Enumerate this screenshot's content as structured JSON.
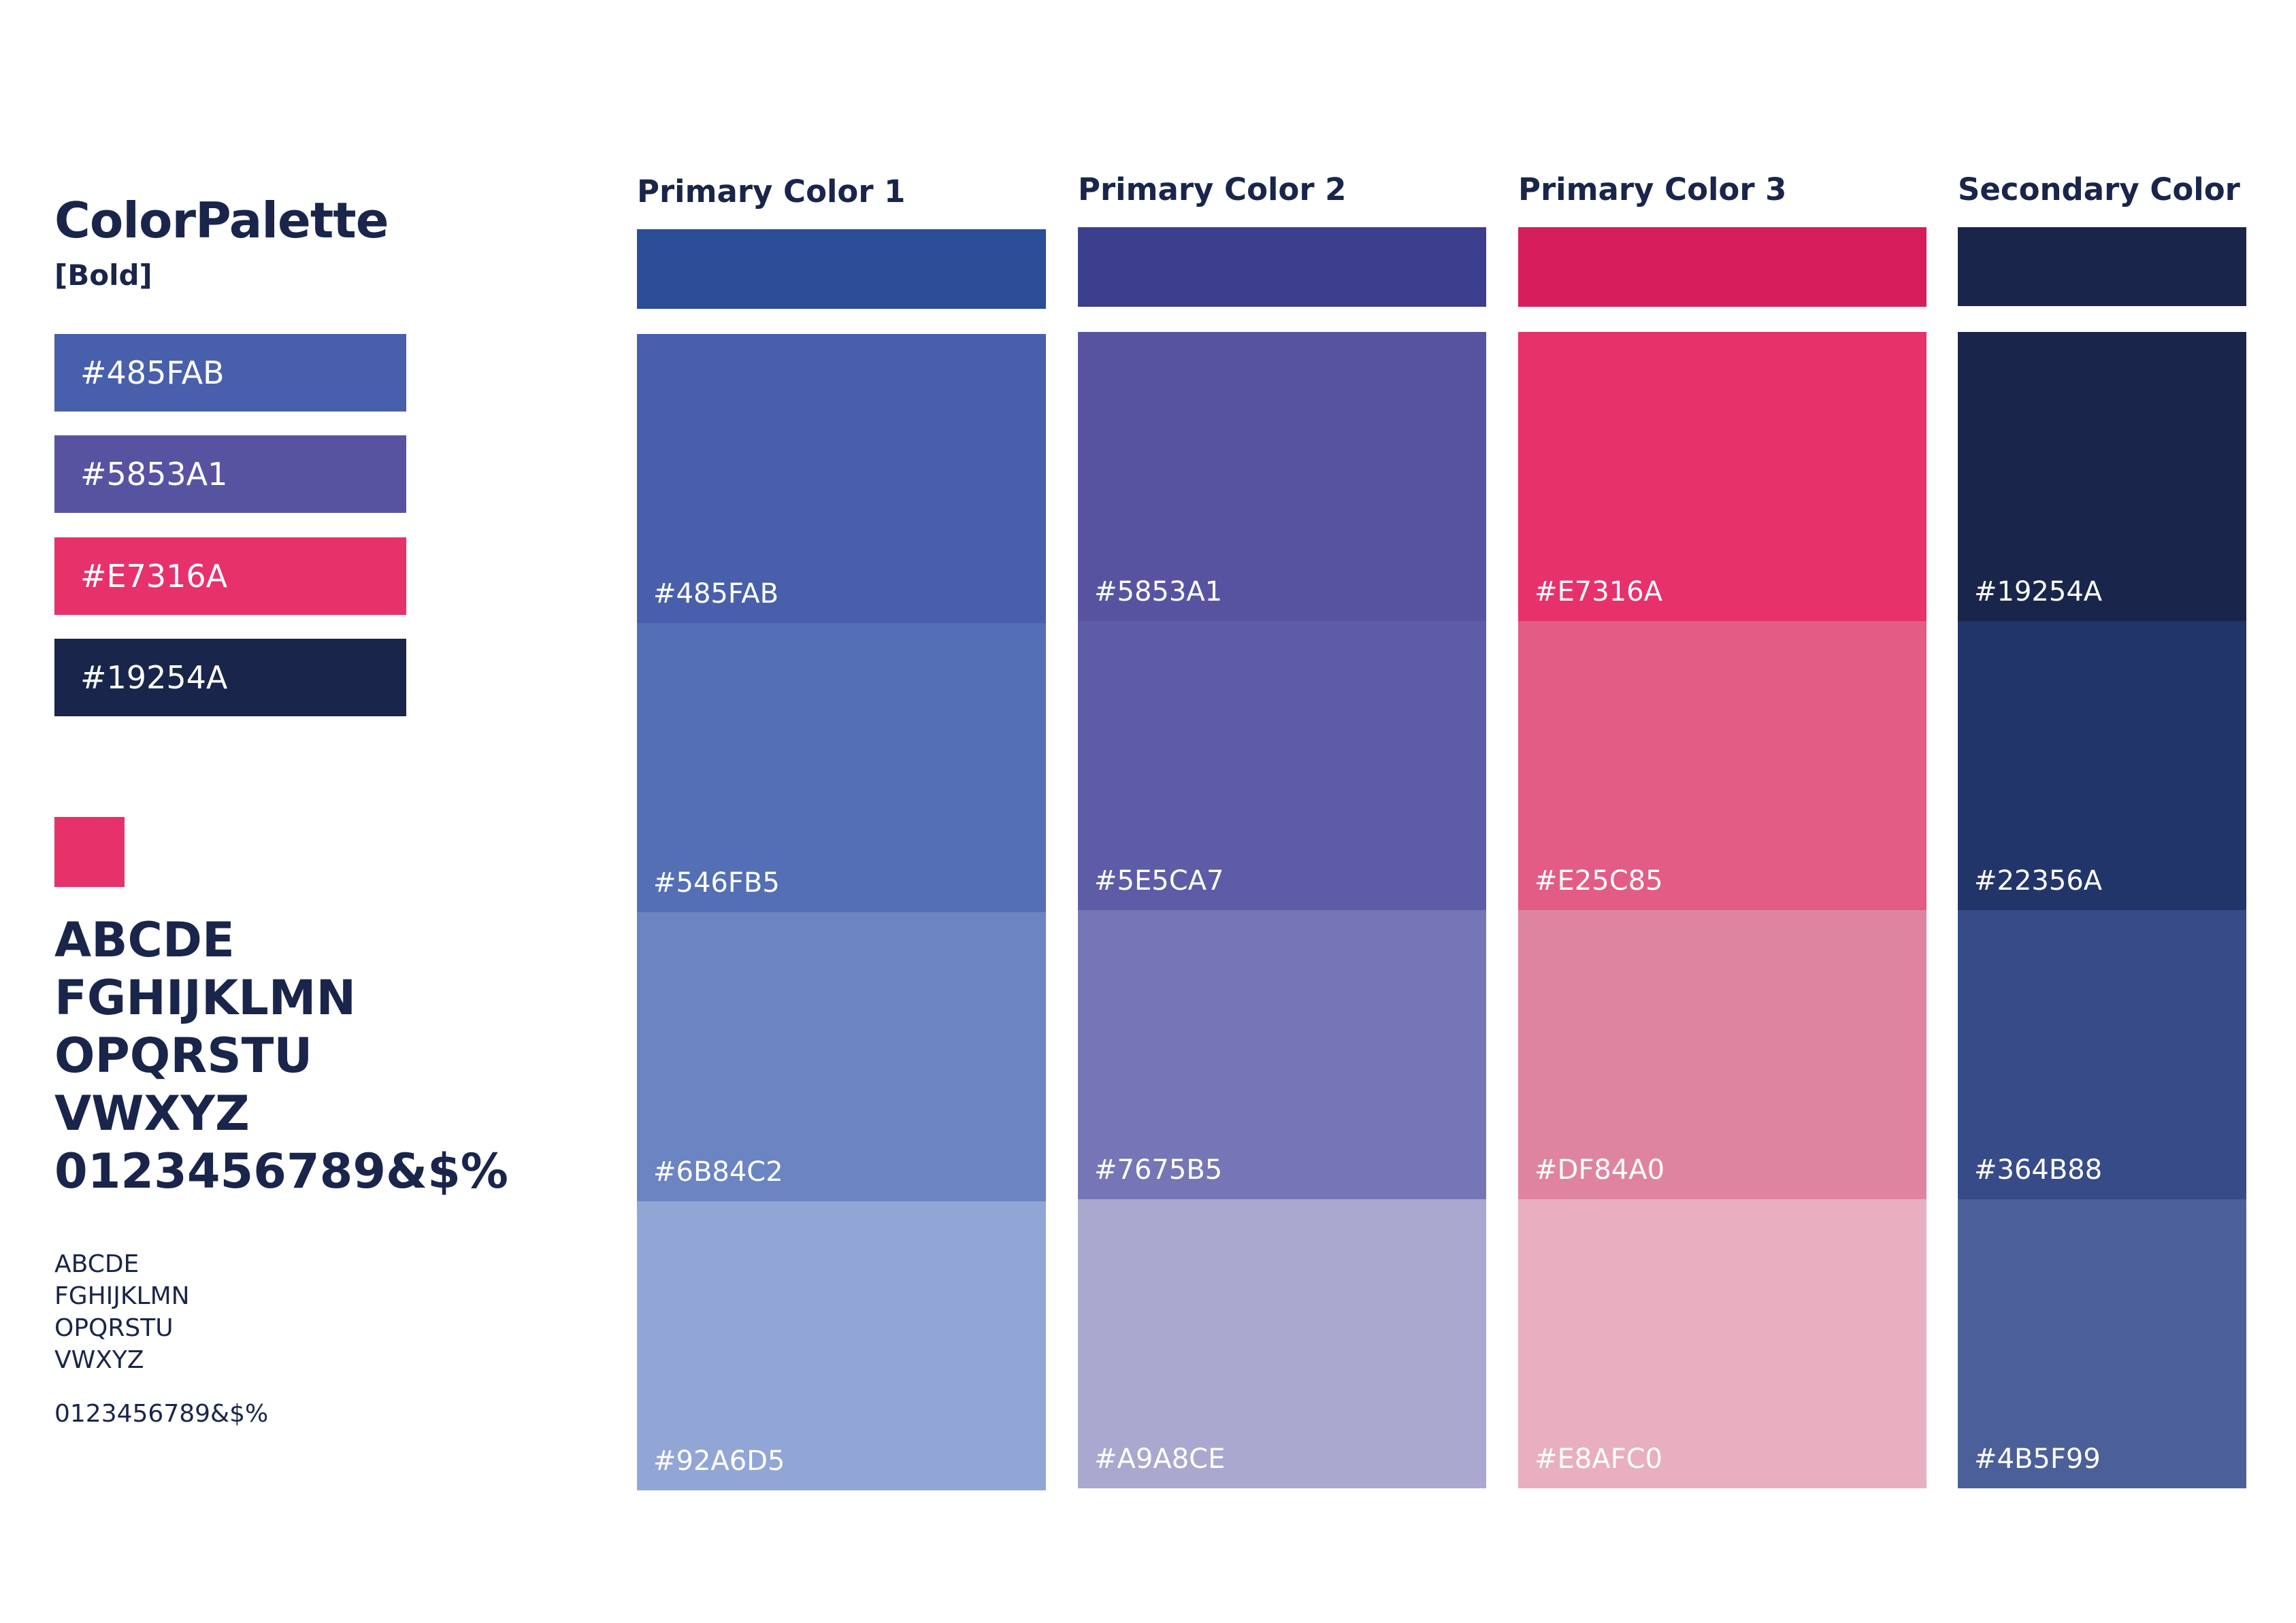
{
  "left": {
    "title": "ColorPalette",
    "subtitle": "[Bold]",
    "chips": [
      {
        "label": "#485FAB",
        "color": "#485FAB"
      },
      {
        "label": "#5853A1",
        "color": "#5853A1"
      },
      {
        "label": "#E7316A",
        "color": "#E7316A"
      },
      {
        "label": "#19254A",
        "color": "#19254A"
      }
    ],
    "accent_color": "#E7316A",
    "big_alphabet": [
      "ABCDE",
      "FGHIJKLMN",
      "OPQRSTU",
      "VWXYZ",
      "0123456789&$%"
    ],
    "small_alphabet": [
      "ABCDE",
      "FGHIJKLMN",
      "OPQRSTU",
      "VWXYZ"
    ],
    "small_digits": "0123456789&$%"
  },
  "columns": [
    {
      "heading": "Primary Color 1",
      "header_color": "#2C4E96",
      "swatches": [
        {
          "label": "#485FAB",
          "color": "#485FAB"
        },
        {
          "label": "#546FB5",
          "color": "#546FB5"
        },
        {
          "label": "#6B84C2",
          "color": "#6B84C2"
        },
        {
          "label": "#92A6D5",
          "color": "#92A6D5"
        }
      ]
    },
    {
      "heading": "Primary Color 2",
      "header_color": "#3C3F8E",
      "swatches": [
        {
          "label": "#5853A1",
          "color": "#5853A1"
        },
        {
          "label": "#5E5CA7",
          "color": "#5E5CA7"
        },
        {
          "label": "#7675B5",
          "color": "#7675B5"
        },
        {
          "label": "#A9A8CE",
          "color": "#A9A8CE"
        }
      ]
    },
    {
      "heading": "Primary Color 3",
      "header_color": "#D61E5D",
      "swatches": [
        {
          "label": "#E7316A",
          "color": "#E7316A"
        },
        {
          "label": "#E25C85",
          "color": "#E25C85"
        },
        {
          "label": "#DF84A0",
          "color": "#DF84A0"
        },
        {
          "label": "#E8AFC0",
          "color": "#E8AFC0"
        }
      ]
    },
    {
      "heading": "Secondary Color",
      "header_color": "#19254A",
      "swatches": [
        {
          "label": "#19254A",
          "color": "#19254A"
        },
        {
          "label": "#22356A",
          "color": "#22356A"
        },
        {
          "label": "#364B88",
          "color": "#364B88"
        },
        {
          "label": "#4B5F99",
          "color": "#4B5F99"
        }
      ]
    }
  ]
}
